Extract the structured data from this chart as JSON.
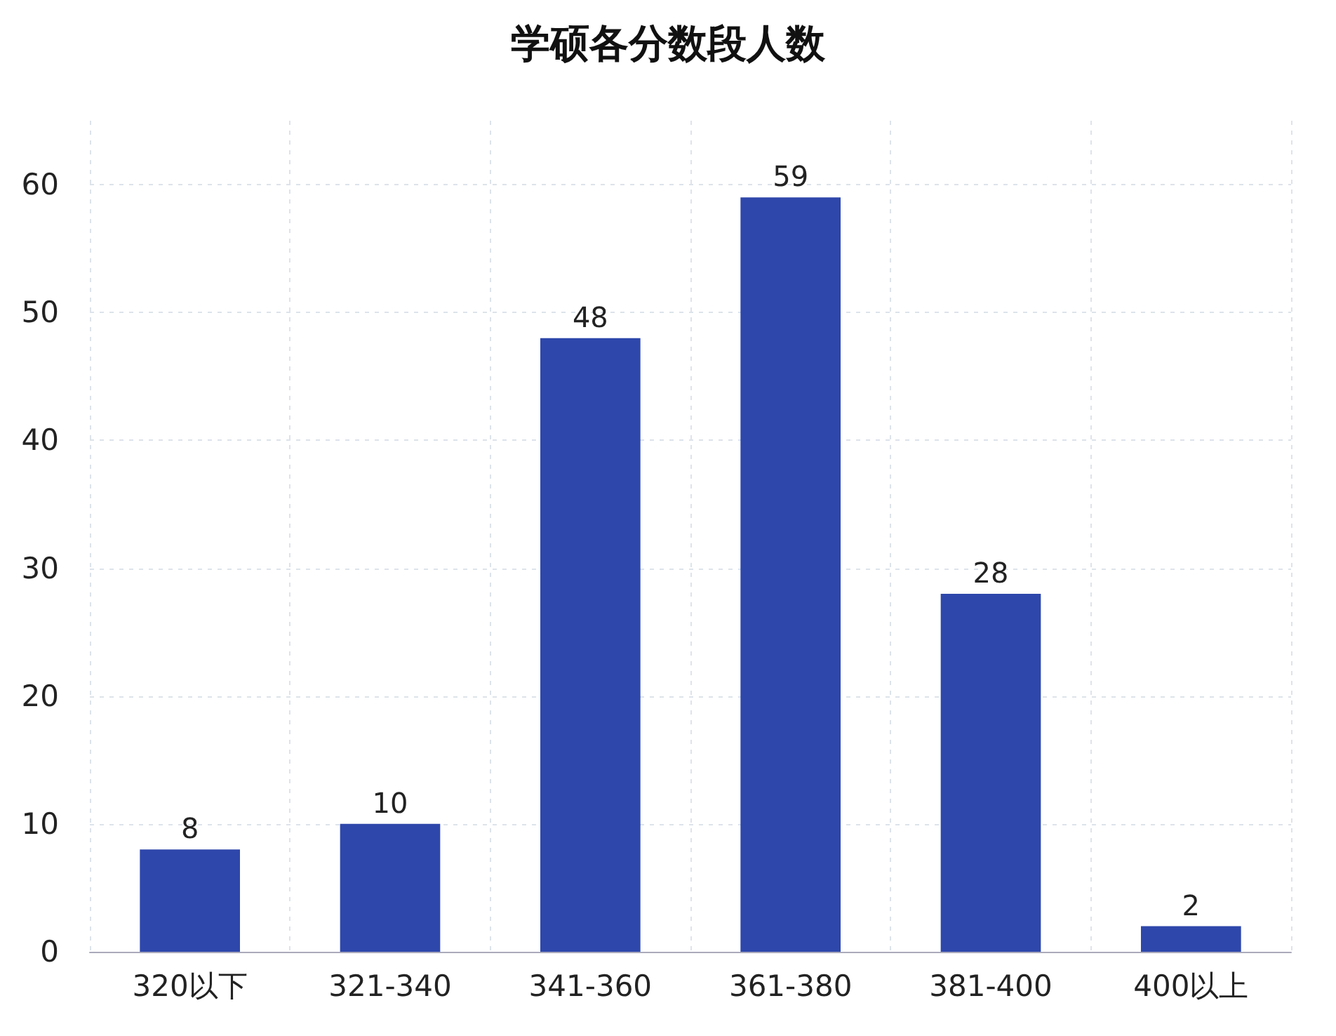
{
  "chart_data": {
    "type": "bar",
    "title": "学硕各分数段人数",
    "categories": [
      "320以下",
      "321-340",
      "341-360",
      "361-380",
      "381-400",
      "400以上"
    ],
    "values": [
      8,
      10,
      48,
      59,
      28,
      2
    ],
    "color": "#2e47ab",
    "ylim": [
      0,
      65
    ],
    "yticks": [
      0,
      10,
      20,
      30,
      40,
      50,
      60
    ],
    "grid": true,
    "data_labels": true
  }
}
